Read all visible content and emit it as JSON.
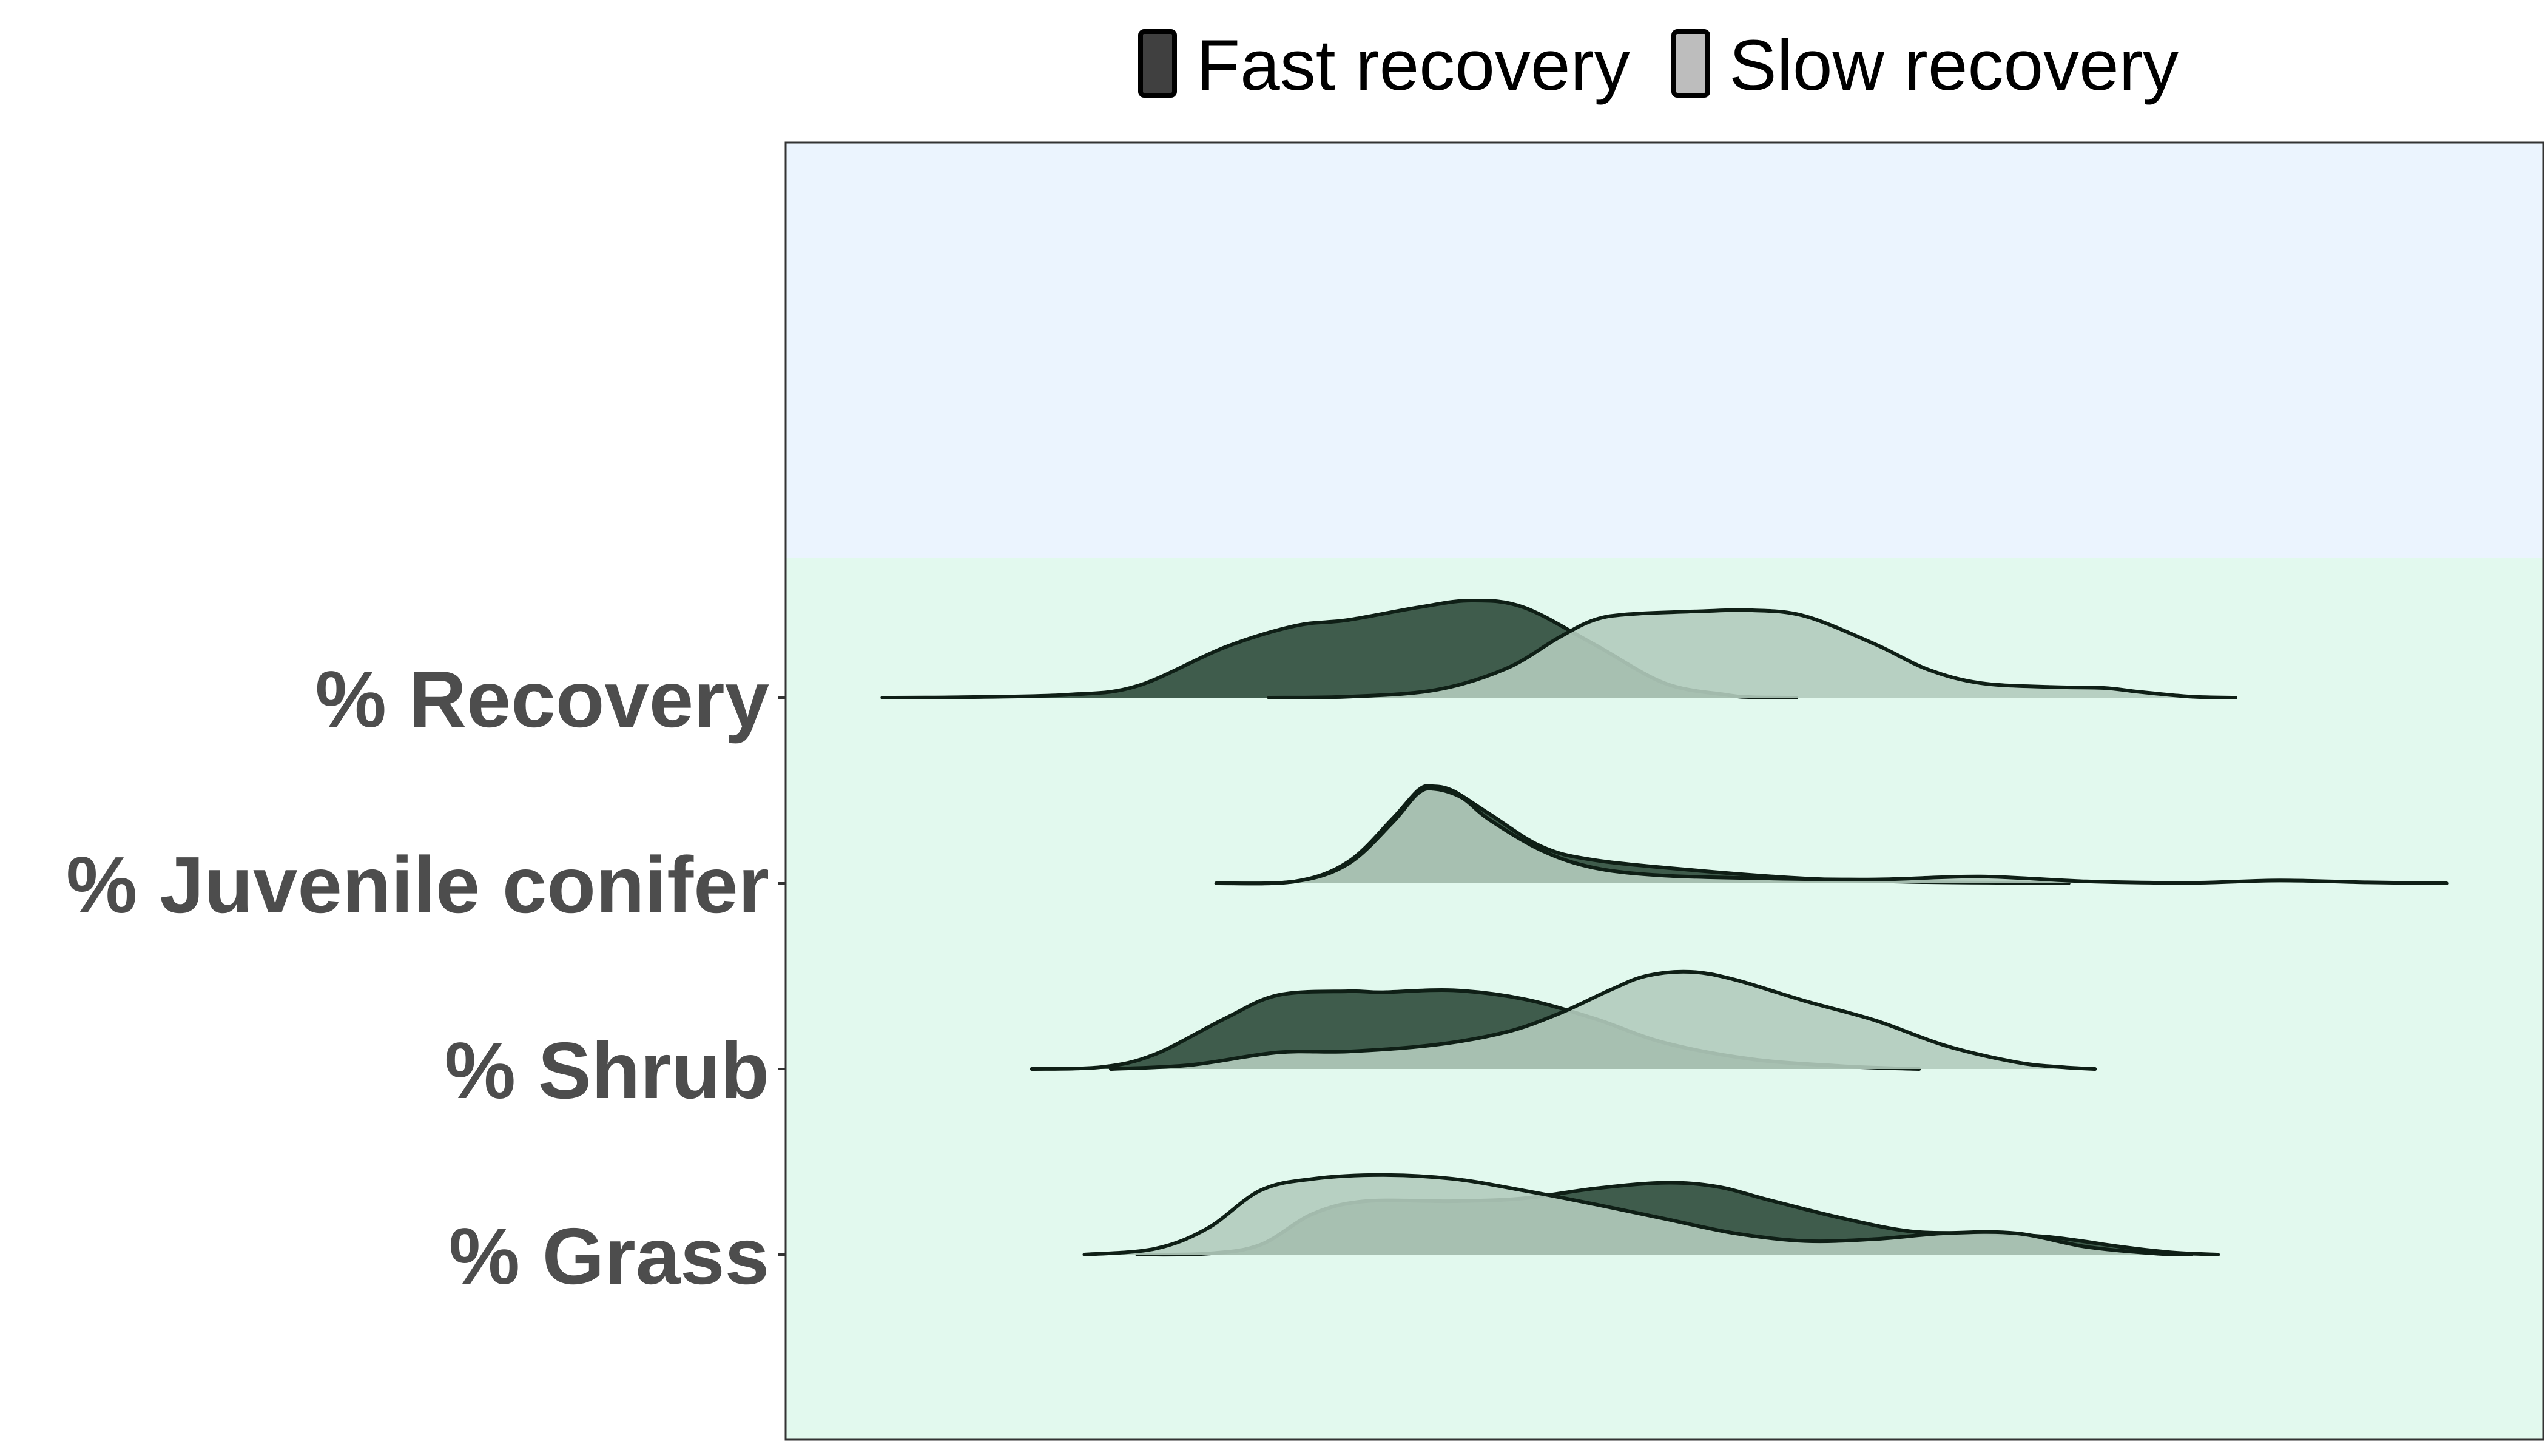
{
  "chart_data": {
    "type": "ridgeline",
    "legend": {
      "position": "top",
      "entries": [
        {
          "label": "Fast recovery",
          "color": "#404040"
        },
        {
          "label": "Slow recovery",
          "color": "#bdbdbd"
        }
      ]
    },
    "colors": {
      "fast_fill": "#2d4a3a",
      "slow_fill": "#b3cbbd",
      "outline": "#0f1f16",
      "upper_band": "#ebf4fe",
      "lower_band": "#e2f9ee",
      "axis_label": "#4d4d4d"
    },
    "x_range": [
      0,
      1
    ],
    "grid": false,
    "categories": [
      "% Recovery",
      "% Juvenile conifer",
      "% Shrub",
      "% Grass"
    ],
    "series": [
      {
        "name": "Fast recovery",
        "densities": [
          {
            "category": "% Recovery",
            "points": [
              [
                0.055,
                0
              ],
              [
                0.1,
                0.005
              ],
              [
                0.16,
                0.03
              ],
              [
                0.2,
                0.12
              ],
              [
                0.25,
                0.52
              ],
              [
                0.29,
                0.74
              ],
              [
                0.32,
                0.8
              ],
              [
                0.36,
                0.93
              ],
              [
                0.39,
                1.0
              ],
              [
                0.42,
                0.93
              ],
              [
                0.46,
                0.55
              ],
              [
                0.5,
                0.15
              ],
              [
                0.535,
                0.03
              ],
              [
                0.55,
                0.005
              ],
              [
                0.575,
                0
              ]
            ]
          },
          {
            "category": "% Juvenile conifer",
            "points": [
              [
                0.245,
                0
              ],
              [
                0.29,
                0.02
              ],
              [
                0.32,
                0.22
              ],
              [
                0.345,
                0.66
              ],
              [
                0.36,
                0.96
              ],
              [
                0.368,
                1.0
              ],
              [
                0.38,
                0.95
              ],
              [
                0.4,
                0.72
              ],
              [
                0.43,
                0.38
              ],
              [
                0.46,
                0.24
              ],
              [
                0.52,
                0.13
              ],
              [
                0.58,
                0.05
              ],
              [
                0.64,
                0.015
              ],
              [
                0.7,
                0.005
              ],
              [
                0.73,
                0
              ]
            ]
          },
          {
            "category": "% Shrub",
            "points": [
              [
                0.14,
                0
              ],
              [
                0.18,
                0.02
              ],
              [
                0.21,
                0.15
              ],
              [
                0.25,
                0.52
              ],
              [
                0.28,
                0.76
              ],
              [
                0.32,
                0.8
              ],
              [
                0.34,
                0.79
              ],
              [
                0.38,
                0.81
              ],
              [
                0.42,
                0.72
              ],
              [
                0.46,
                0.52
              ],
              [
                0.5,
                0.27
              ],
              [
                0.55,
                0.1
              ],
              [
                0.6,
                0.03
              ],
              [
                0.625,
                0.01
              ],
              [
                0.645,
                0
              ]
            ]
          },
          {
            "category": "% Grass",
            "points": [
              [
                0.2,
                0
              ],
              [
                0.24,
                0.01
              ],
              [
                0.27,
                0.1
              ],
              [
                0.3,
                0.42
              ],
              [
                0.33,
                0.55
              ],
              [
                0.38,
                0.55
              ],
              [
                0.42,
                0.58
              ],
              [
                0.46,
                0.68
              ],
              [
                0.5,
                0.74
              ],
              [
                0.53,
                0.7
              ],
              [
                0.56,
                0.56
              ],
              [
                0.6,
                0.38
              ],
              [
                0.64,
                0.24
              ],
              [
                0.68,
                0.22
              ],
              [
                0.72,
                0.18
              ],
              [
                0.76,
                0.08
              ],
              [
                0.79,
                0.02
              ],
              [
                0.815,
                0
              ]
            ]
          }
        ]
      },
      {
        "name": "Slow recovery",
        "densities": [
          {
            "category": "% Recovery",
            "points": [
              [
                0.275,
                0
              ],
              [
                0.32,
                0.01
              ],
              [
                0.37,
                0.08
              ],
              [
                0.41,
                0.3
              ],
              [
                0.44,
                0.62
              ],
              [
                0.46,
                0.8
              ],
              [
                0.48,
                0.86
              ],
              [
                0.52,
                0.89
              ],
              [
                0.55,
                0.9
              ],
              [
                0.58,
                0.84
              ],
              [
                0.62,
                0.55
              ],
              [
                0.65,
                0.29
              ],
              [
                0.68,
                0.15
              ],
              [
                0.72,
                0.11
              ],
              [
                0.75,
                0.1
              ],
              [
                0.77,
                0.06
              ],
              [
                0.8,
                0.01
              ],
              [
                0.825,
                0
              ]
            ]
          },
          {
            "category": "% Juvenile conifer",
            "points": [
              [
                0.245,
                0
              ],
              [
                0.29,
                0.02
              ],
              [
                0.32,
                0.2
              ],
              [
                0.345,
                0.62
              ],
              [
                0.36,
                0.93
              ],
              [
                0.37,
                0.97
              ],
              [
                0.385,
                0.88
              ],
              [
                0.4,
                0.66
              ],
              [
                0.43,
                0.34
              ],
              [
                0.46,
                0.16
              ],
              [
                0.5,
                0.08
              ],
              [
                0.56,
                0.05
              ],
              [
                0.62,
                0.04
              ],
              [
                0.68,
                0.07
              ],
              [
                0.74,
                0.02
              ],
              [
                0.8,
                0.005
              ],
              [
                0.85,
                0.03
              ],
              [
                0.9,
                0.01
              ],
              [
                0.945,
                0
              ]
            ]
          },
          {
            "category": "% Shrub",
            "points": [
              [
                0.185,
                0
              ],
              [
                0.23,
                0.04
              ],
              [
                0.28,
                0.17
              ],
              [
                0.32,
                0.18
              ],
              [
                0.37,
                0.25
              ],
              [
                0.41,
                0.38
              ],
              [
                0.44,
                0.57
              ],
              [
                0.47,
                0.82
              ],
              [
                0.49,
                0.96
              ],
              [
                0.515,
                1.0
              ],
              [
                0.54,
                0.92
              ],
              [
                0.58,
                0.7
              ],
              [
                0.62,
                0.5
              ],
              [
                0.66,
                0.24
              ],
              [
                0.7,
                0.07
              ],
              [
                0.725,
                0.02
              ],
              [
                0.745,
                0
              ]
            ]
          },
          {
            "category": "% Grass",
            "points": [
              [
                0.17,
                0
              ],
              [
                0.21,
                0.06
              ],
              [
                0.24,
                0.27
              ],
              [
                0.27,
                0.66
              ],
              [
                0.3,
                0.78
              ],
              [
                0.34,
                0.82
              ],
              [
                0.38,
                0.78
              ],
              [
                0.42,
                0.66
              ],
              [
                0.46,
                0.52
              ],
              [
                0.5,
                0.37
              ],
              [
                0.54,
                0.22
              ],
              [
                0.58,
                0.14
              ],
              [
                0.62,
                0.16
              ],
              [
                0.66,
                0.22
              ],
              [
                0.7,
                0.22
              ],
              [
                0.74,
                0.08
              ],
              [
                0.78,
                0.01
              ],
              [
                0.8,
                0
              ]
            ]
          }
        ]
      }
    ]
  }
}
